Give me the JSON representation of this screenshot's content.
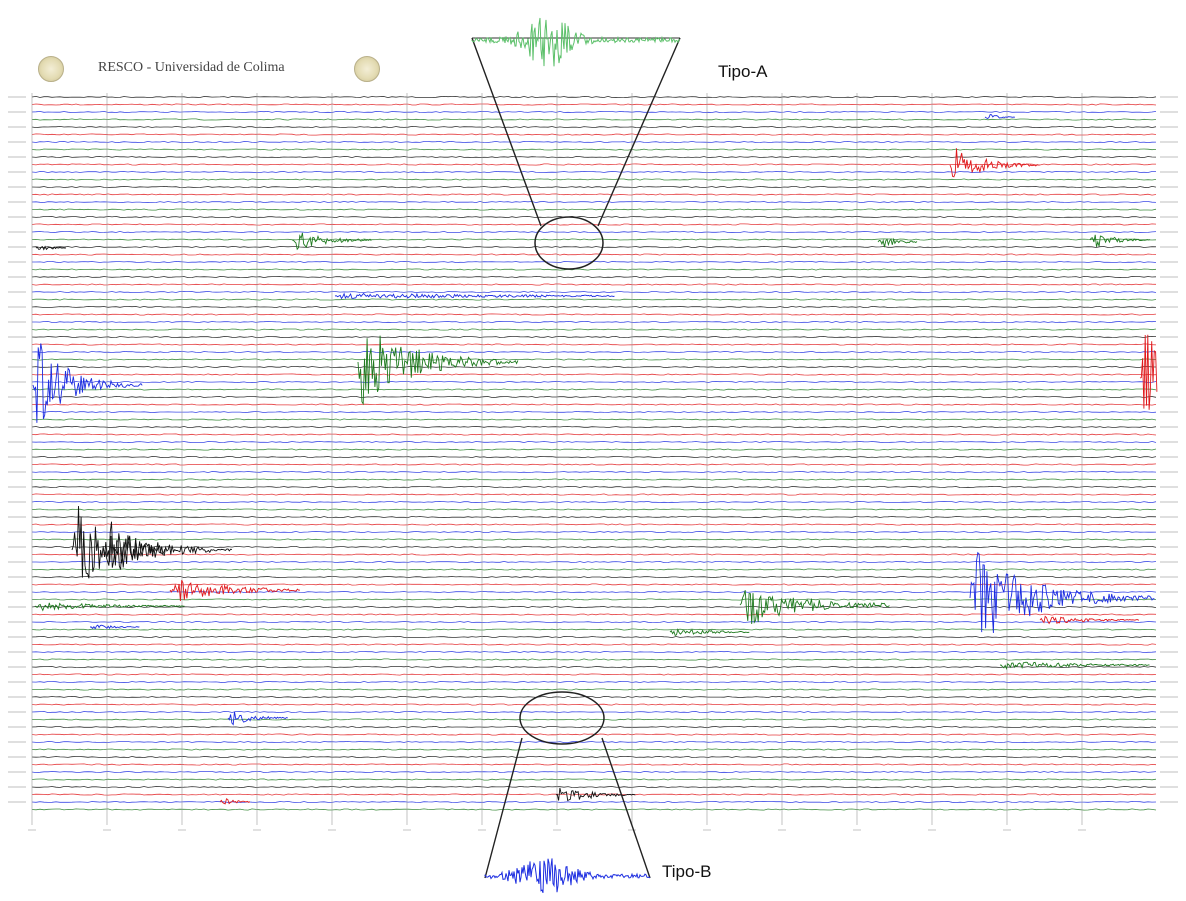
{
  "header": {
    "title": "RESCO - Universidad de Colima"
  },
  "annotations": {
    "type_a": "Tipo-A",
    "type_b": "Tipo-B"
  },
  "icons": [
    "logo-seal-icon",
    "logo-seal-icon"
  ],
  "colors": {
    "black": "#111111",
    "red": "#e0191c",
    "blue": "#1c2de0",
    "green": "#1f7a1f",
    "zoom_green": "#5cc06a"
  }
}
